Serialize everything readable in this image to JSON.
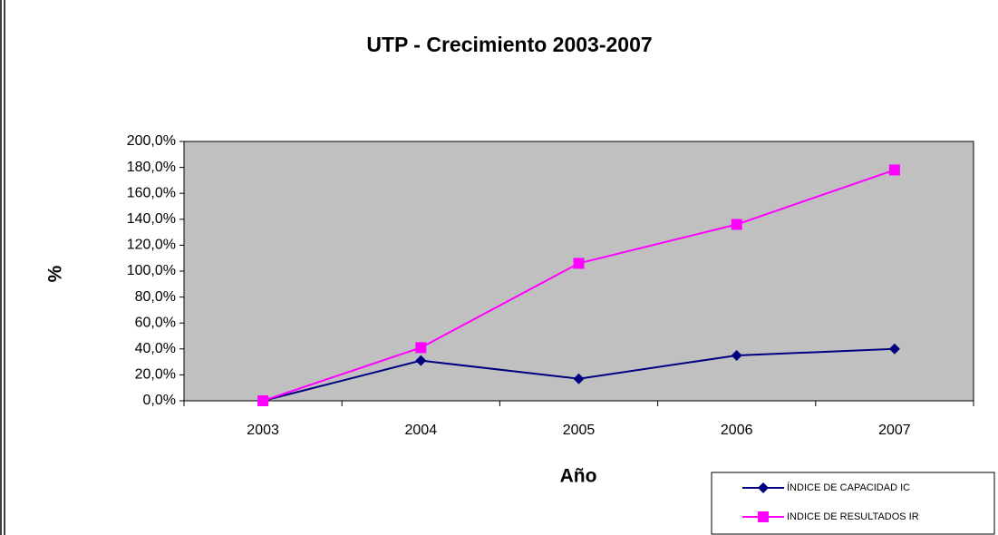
{
  "chart_data": {
    "type": "line",
    "title": "UTP - Crecimiento 2003-2007",
    "xlabel": "Año",
    "ylabel": "%",
    "categories": [
      "2003",
      "2004",
      "2005",
      "2006",
      "2007"
    ],
    "series": [
      {
        "name": "ÍNDICE DE CAPACIDAD IC",
        "color": "#000080",
        "marker": "diamond",
        "values": [
          0,
          31,
          17,
          35,
          40
        ]
      },
      {
        "name": "INDICE DE RESULTADOS IR",
        "color": "#ff00ff",
        "marker": "square",
        "values": [
          0,
          41,
          106,
          136,
          178
        ]
      }
    ],
    "ylim": [
      0,
      200
    ],
    "yticks": [
      {
        "value": 0,
        "label": "0,0%"
      },
      {
        "value": 20,
        "label": "20,0%"
      },
      {
        "value": 40,
        "label": "40,0%"
      },
      {
        "value": 60,
        "label": "60,0%"
      },
      {
        "value": 80,
        "label": "80,0%"
      },
      {
        "value": 100,
        "label": "100,0%"
      },
      {
        "value": 120,
        "label": "120,0%"
      },
      {
        "value": 140,
        "label": "140,0%"
      },
      {
        "value": 160,
        "label": "160,0%"
      },
      {
        "value": 180,
        "label": "180,0%"
      },
      {
        "value": 200,
        "label": "200,0%"
      }
    ],
    "grid": false,
    "plot_background": "#c0c0c0",
    "legend": "lower right"
  }
}
